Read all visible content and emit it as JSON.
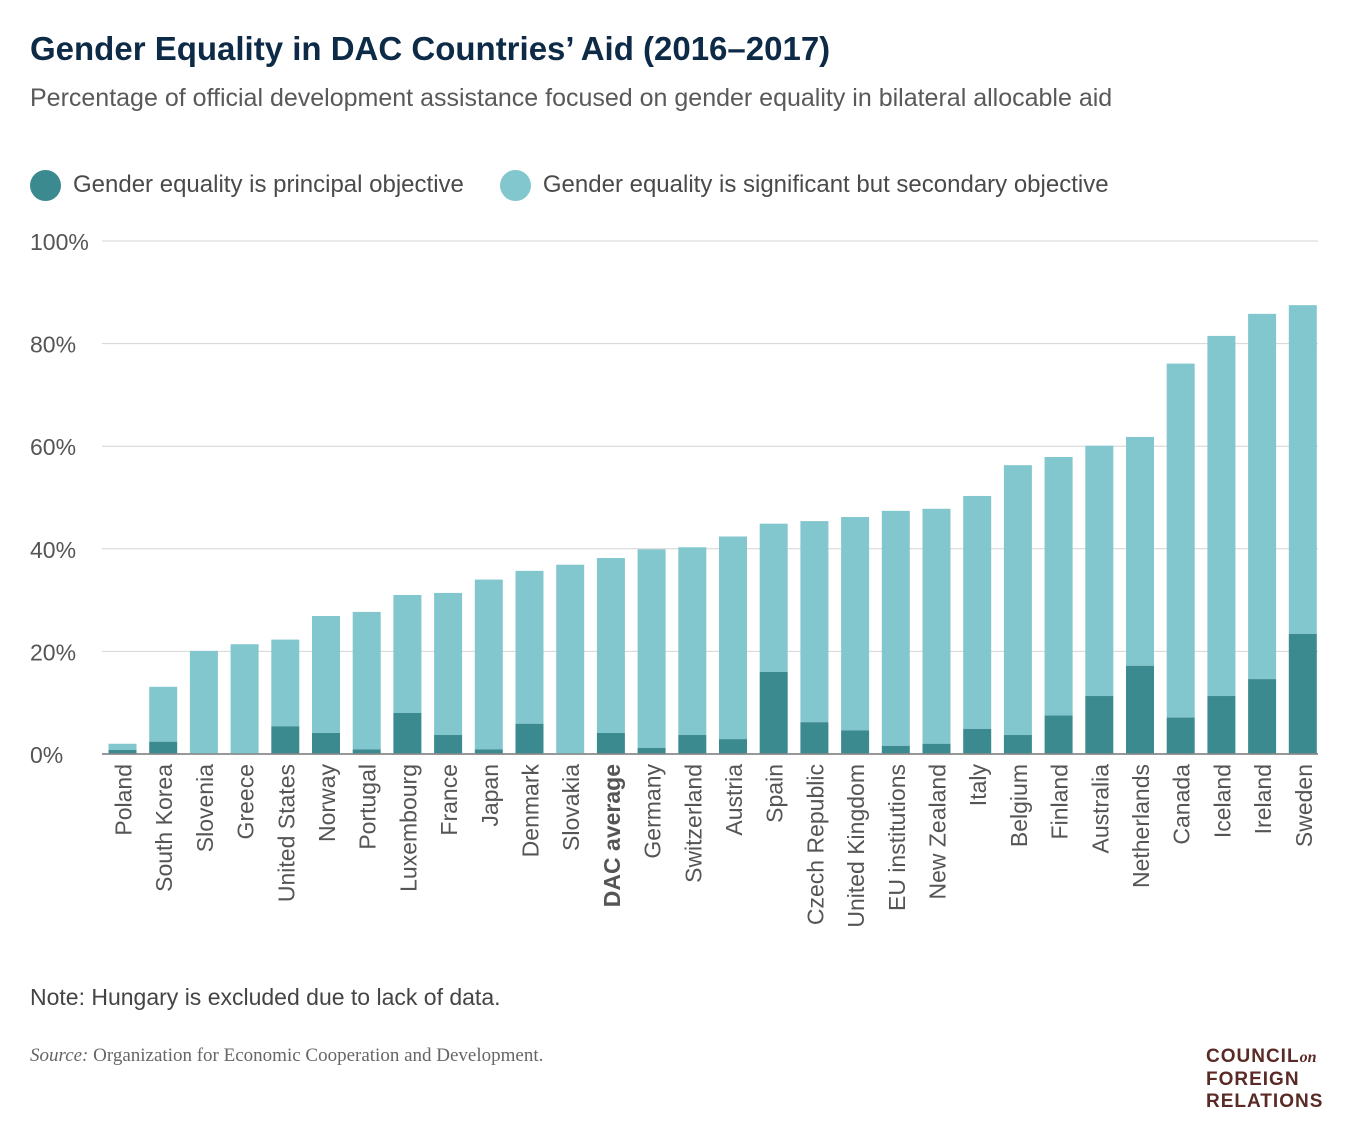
{
  "header": {
    "title": "Gender Equality in DAC Countries’ Aid (2016–2017)",
    "subtitle": "Percentage of official development assistance focused on gender equality in bilateral allocable aid"
  },
  "legend": {
    "items": [
      {
        "label": "Gender equality is principal objective",
        "color": "#3b8a8f"
      },
      {
        "label": "Gender equality is significant but secondary objective",
        "color": "#83c7ce"
      }
    ]
  },
  "chart_data": {
    "type": "bar",
    "stacked": true,
    "categories": [
      "Poland",
      "South Korea",
      "Slovenia",
      "Greece",
      "United States",
      "Norway",
      "Portugal",
      "Luxembourg",
      "France",
      "Japan",
      "Denmark",
      "Slovakia",
      "DAC average",
      "Germany",
      "Switzerland",
      "Austria",
      "Spain",
      "Czech Republic",
      "United Kingdom",
      "EU institutions",
      "New Zealand",
      "Italy",
      "Belgium",
      "Finland",
      "Australia",
      "Netherlands",
      "Canada",
      "Iceland",
      "Ireland",
      "Sweden"
    ],
    "highlight_category": "DAC average",
    "series": [
      {
        "name": "Gender equality is principal objective",
        "color": "#3b8a8f",
        "values": [
          0.8,
          2.4,
          0,
          0,
          5.4,
          4.1,
          0.9,
          8.0,
          3.7,
          0.9,
          5.9,
          0,
          4.1,
          1.2,
          3.7,
          2.9,
          16.0,
          6.2,
          4.6,
          1.6,
          2.0,
          4.9,
          3.7,
          7.5,
          11.3,
          17.2,
          7.1,
          11.3,
          14.6,
          23.4
        ]
      },
      {
        "name": "Gender equality is significant but secondary objective",
        "color": "#83c7ce",
        "values": [
          1.2,
          10.7,
          20.1,
          21.4,
          16.9,
          22.8,
          26.8,
          23.0,
          27.7,
          33.1,
          29.8,
          36.9,
          34.1,
          38.7,
          36.6,
          39.5,
          28.9,
          39.2,
          41.6,
          45.8,
          45.8,
          45.4,
          52.6,
          50.4,
          48.8,
          44.6,
          69.0,
          70.2,
          71.2,
          64.1
        ]
      }
    ],
    "y_ticks": [
      "0%",
      "20%",
      "40%",
      "60%",
      "80%",
      "100%"
    ],
    "ylim": [
      0,
      100
    ],
    "grid": true,
    "legend_position": "top-left"
  },
  "footer": {
    "note": "Note: Hungary is excluded due to lack of data.",
    "source_label": "Source:",
    "source_text": " Organization for Economic Cooperation and Development.",
    "logo_line1": "COUNCIL",
    "logo_on": "on",
    "logo_line2": "FOREIGN",
    "logo_line3": "RELATIONS"
  }
}
